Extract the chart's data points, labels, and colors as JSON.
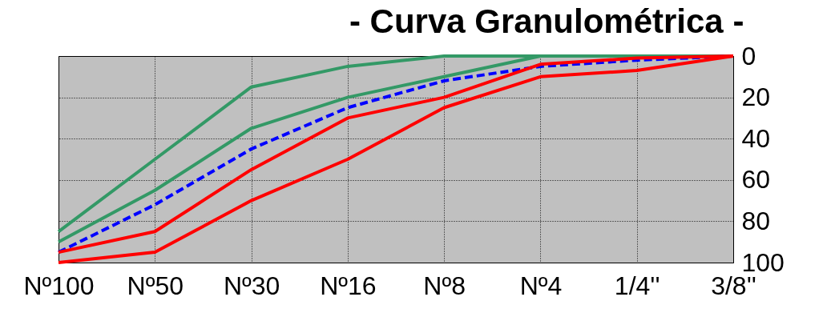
{
  "chart_data": {
    "type": "line",
    "title": "- Curva Granulométrica -",
    "categories": [
      "Nº100",
      "Nº50",
      "Nº30",
      "Nº16",
      "Nº8",
      "Nº4",
      "1/4''",
      "3/8''"
    ],
    "series": [
      {
        "color": "#339966",
        "values": [
          85,
          50,
          15,
          5,
          0,
          0,
          0,
          0
        ]
      },
      {
        "color": "#339966",
        "values": [
          90,
          65,
          35,
          20,
          10,
          0,
          0,
          0
        ]
      },
      {
        "color": "#0000ff",
        "line_style": "dashed",
        "values": [
          95,
          72,
          45,
          25,
          12,
          5,
          2,
          0
        ]
      },
      {
        "color": "#ff0000",
        "values": [
          95,
          85,
          55,
          30,
          20,
          4,
          1,
          0
        ]
      },
      {
        "color": "#ff0000",
        "values": [
          100,
          95,
          70,
          50,
          25,
          10,
          7,
          0
        ]
      }
    ],
    "ylim": [
      100,
      0
    ],
    "yticks": [
      0,
      20,
      40,
      60,
      80,
      100
    ],
    "grid": true,
    "marker": "none",
    "line_style": "solid"
  }
}
